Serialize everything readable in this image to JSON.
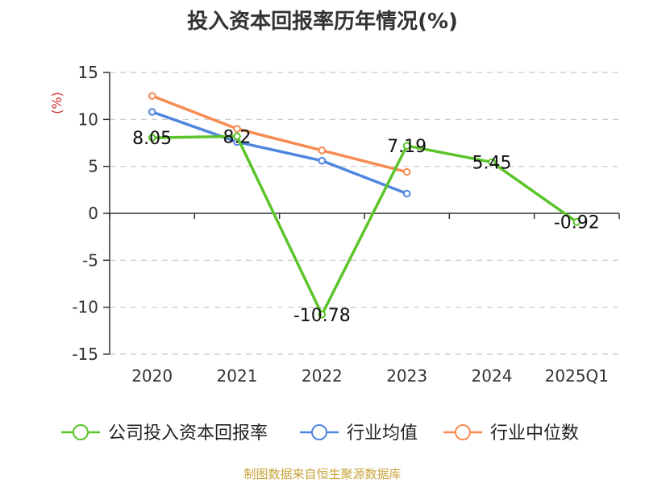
{
  "title": "投入资本回报率历年情况(%)",
  "source": "制图数据来自恒生聚源数据库",
  "colors": {
    "company": "#5bc42a",
    "industry_avg": "#4f86e0",
    "industry_median": "#f78c52",
    "ylabel": "#d42a2a",
    "grid": "#c8c8c8"
  },
  "chart_data": {
    "type": "line",
    "categories": [
      "2020",
      "2021",
      "2022",
      "2023",
      "2024",
      "2025Q1"
    ],
    "ylabel": "(%)",
    "ylim": [
      -15,
      15
    ],
    "yticks": [
      15,
      10,
      5,
      0,
      -5,
      -10,
      -15
    ],
    "grid": true,
    "legend_position": "bottom",
    "series": [
      {
        "key": "company",
        "name": "公司投入资本回报率",
        "values": [
          8.05,
          8.2,
          -10.78,
          7.19,
          5.45,
          -0.92
        ],
        "labels": [
          "8.05",
          "8.2",
          "-10.78",
          "7.19",
          "5.45",
          "-0.92"
        ]
      },
      {
        "key": "industry_avg",
        "name": "行业均值",
        "values": [
          10.8,
          7.6,
          5.6,
          2.1,
          null,
          null
        ]
      },
      {
        "key": "industry_median",
        "name": "行业中位数",
        "values": [
          12.5,
          9.0,
          6.7,
          4.4,
          null,
          null
        ]
      }
    ]
  }
}
